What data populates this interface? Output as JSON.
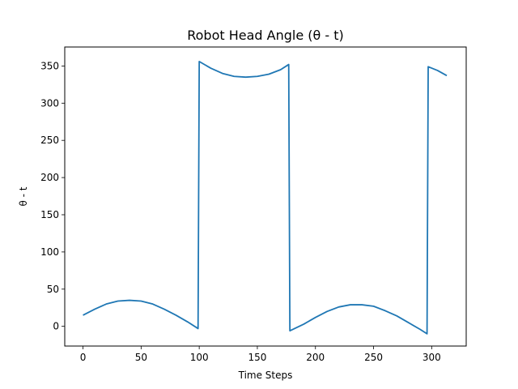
{
  "chart_data": {
    "type": "line",
    "title": "Robot Head Angle (θ - t)",
    "xlabel": "Time Steps",
    "ylabel": "θ - t",
    "xlim": [
      -15.7,
      329.7
    ],
    "ylim": [
      -26.5,
      375.5
    ],
    "xticks": [
      0,
      50,
      100,
      150,
      200,
      250,
      300
    ],
    "yticks": [
      0,
      50,
      100,
      150,
      200,
      250,
      300,
      350
    ],
    "grid": false,
    "series": [
      {
        "name": "θ - t",
        "color": "#1f77b4",
        "x": [
          0,
          10,
          20,
          30,
          40,
          50,
          60,
          70,
          80,
          90,
          99,
          100,
          110,
          120,
          130,
          140,
          150,
          160,
          170,
          177,
          178,
          190,
          200,
          210,
          220,
          230,
          240,
          250,
          260,
          270,
          280,
          290,
          296,
          297,
          305,
          313
        ],
        "y": [
          15,
          23,
          30,
          34,
          35,
          34,
          30,
          23,
          15,
          6,
          -3,
          356,
          347,
          340,
          336,
          335,
          336,
          339,
          345,
          352,
          -6,
          3,
          12,
          20,
          26,
          29,
          29,
          27,
          21,
          14,
          5,
          -4,
          -10,
          349,
          344,
          337
        ]
      }
    ]
  }
}
